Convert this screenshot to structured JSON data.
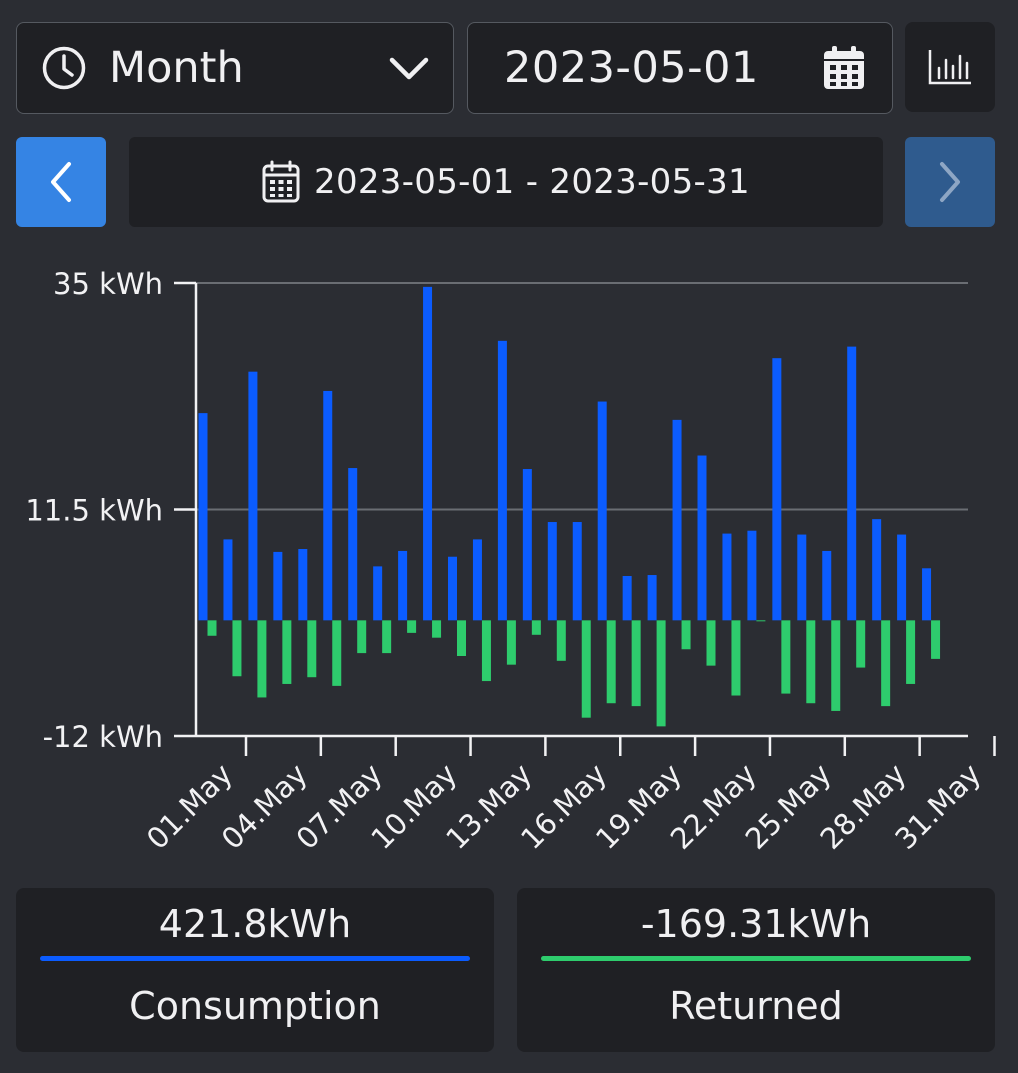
{
  "header": {
    "period_label": "Month",
    "date_value": "2023-05-01",
    "range_label": "2023-05-01 - 2023-05-31"
  },
  "colors": {
    "consumption": "#0b5cff",
    "returned": "#2ecc6d",
    "accent": "#3584e4"
  },
  "icons": {
    "period": "clock-icon",
    "dropdown": "chevron-down-icon",
    "date": "calendar-icon",
    "chart_toggle": "bar-chart-icon",
    "prev": "chevron-left-icon",
    "next": "chevron-right-icon"
  },
  "summary": {
    "consumption_value": "421.8kWh",
    "consumption_label": "Consumption",
    "returned_value": "-169.31kWh",
    "returned_label": "Returned"
  },
  "chart_data": {
    "type": "bar",
    "title": "",
    "xlabel": "",
    "ylabel": "",
    "ylim": [
      -12,
      35
    ],
    "yticks": [
      35,
      11.5,
      -12
    ],
    "ytick_labels": [
      "35 kWh",
      "11.5 kWh",
      "-12 kWh"
    ],
    "categories": [
      "01.May",
      "02.May",
      "03.May",
      "04.May",
      "05.May",
      "06.May",
      "07.May",
      "08.May",
      "09.May",
      "10.May",
      "11.May",
      "12.May",
      "13.May",
      "14.May",
      "15.May",
      "16.May",
      "17.May",
      "18.May",
      "19.May",
      "20.May",
      "21.May",
      "22.May",
      "23.May",
      "24.May",
      "25.May",
      "26.May",
      "27.May",
      "28.May",
      "29.May",
      "30.May",
      "31.May"
    ],
    "xtick_labels": [
      "01.May",
      "04.May",
      "07.May",
      "10.May",
      "13.May",
      "16.May",
      "19.May",
      "22.May",
      "25.May",
      "28.May",
      "31.May"
    ],
    "series": [
      {
        "values": [
          21.5,
          8.4,
          25.8,
          7.1,
          7.4,
          23.8,
          15.8,
          5.6,
          7.2,
          34.6,
          6.6,
          8.4,
          29,
          15.7,
          10.2,
          10.2,
          22.7,
          4.6,
          4.7,
          20.8,
          17.1,
          9,
          9.3,
          27.2,
          8.9,
          7.2,
          28.4,
          10.5,
          8.9,
          5.4,
          0
        ]
      },
      {
        "values": [
          -1.6,
          -5.8,
          -8,
          -6.6,
          -5.9,
          -6.8,
          -3.4,
          -3.4,
          -1.3,
          -1.8,
          -3.7,
          -6.3,
          -4.6,
          -1.5,
          -4.2,
          -10.1,
          -8.6,
          -8.9,
          -11,
          -3,
          -4.7,
          -7.8,
          -0.1,
          -7.6,
          -8.6,
          -9.4,
          -4.9,
          -8.9,
          -6.6,
          -4,
          0
        ]
      }
    ]
  }
}
